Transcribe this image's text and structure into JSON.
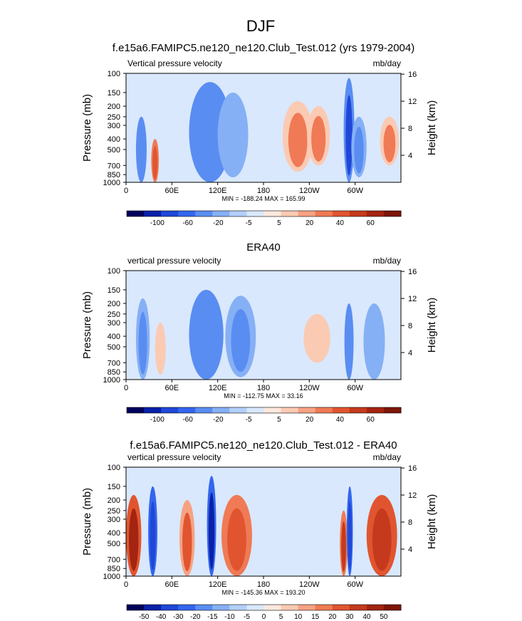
{
  "figure_title": "DJF",
  "chart_data": [
    {
      "type": "heatmap",
      "title": "f.e15a6.FAMIPC5.ne120_ne120.Club_Test.012 (yrs 1979-2004)",
      "left_label": "Vertical pressure velocity",
      "right_label": "mb/day",
      "ylabel": "Pressure (mb)",
      "ylabel_right": "Height (km)",
      "yticks": [
        "100",
        "150",
        "200",
        "250",
        "300",
        "400",
        "500",
        "700",
        "850",
        "1000"
      ],
      "ytick_values": [
        100,
        150,
        200,
        250,
        300,
        400,
        500,
        700,
        850,
        1000
      ],
      "ylim": [
        1000,
        100
      ],
      "height_ticks": [
        4,
        8,
        12,
        16
      ],
      "xticks": [
        "0",
        "60E",
        "120E",
        "180",
        "120W",
        "60W"
      ],
      "xtick_values": [
        0,
        60,
        120,
        180,
        240,
        300
      ],
      "xlim": [
        0,
        360
      ],
      "stats": "MIN = -188.24  MAX = 165.99",
      "colorbar_labels": [
        "-100",
        "-60",
        "-20",
        "-5",
        "5",
        "20",
        "40",
        "60"
      ],
      "colorbar_colors": [
        "#00005c",
        "#0a21a8",
        "#1f48d9",
        "#3366ee",
        "#5a8df2",
        "#86b0f5",
        "#b3cff9",
        "#d9e8fc",
        "#fde8dc",
        "#fbcab3",
        "#f6a282",
        "#ef7a55",
        "#e0552f",
        "#c53a1c",
        "#a32410",
        "#7d1509"
      ],
      "features": [
        {
          "lon": 20,
          "p_top": 250,
          "p_bot": 1000,
          "value": -60,
          "width": 14
        },
        {
          "lon": 38,
          "p_top": 400,
          "p_bot": 1000,
          "value": 40,
          "width": 10
        },
        {
          "lon": 110,
          "p_top": 120,
          "p_bot": 1000,
          "value": -40,
          "width": 55
        },
        {
          "lon": 140,
          "p_top": 150,
          "p_bot": 900,
          "value": -20,
          "width": 40
        },
        {
          "lon": 225,
          "p_top": 180,
          "p_bot": 800,
          "value": 30,
          "width": 40
        },
        {
          "lon": 252,
          "p_top": 200,
          "p_bot": 700,
          "value": 20,
          "width": 30
        },
        {
          "lon": 292,
          "p_top": 110,
          "p_bot": 1000,
          "value": -70,
          "width": 14
        },
        {
          "lon": 305,
          "p_top": 250,
          "p_bot": 900,
          "value": -25,
          "width": 20
        },
        {
          "lon": 345,
          "p_top": 250,
          "p_bot": 700,
          "value": 30,
          "width": 25
        }
      ]
    },
    {
      "type": "heatmap",
      "title": "ERA40",
      "left_label": "vertical pressure velocity",
      "right_label": "mb/day",
      "ylabel": "Pressure (mb)",
      "ylabel_right": "Height (km)",
      "yticks": [
        "100",
        "150",
        "200",
        "250",
        "300",
        "400",
        "500",
        "700",
        "850",
        "1000"
      ],
      "ytick_values": [
        100,
        150,
        200,
        250,
        300,
        400,
        500,
        700,
        850,
        1000
      ],
      "ylim": [
        1000,
        100
      ],
      "height_ticks": [
        4,
        8,
        12,
        16
      ],
      "xticks": [
        "0",
        "60E",
        "120E",
        "180",
        "120W",
        "60W"
      ],
      "xtick_values": [
        0,
        60,
        120,
        180,
        240,
        300
      ],
      "xlim": [
        0,
        360
      ],
      "stats": "MIN = -112.75  MAX =  33.16",
      "colorbar_labels": [
        "-100",
        "-60",
        "-20",
        "-5",
        "5",
        "20",
        "40",
        "60"
      ],
      "colorbar_colors": [
        "#00005c",
        "#0a21a8",
        "#1f48d9",
        "#3366ee",
        "#5a8df2",
        "#86b0f5",
        "#b3cff9",
        "#d9e8fc",
        "#fde8dc",
        "#fbcab3",
        "#f6a282",
        "#ef7a55",
        "#e0552f",
        "#c53a1c",
        "#a32410",
        "#7d1509"
      ],
      "features": [
        {
          "lon": 22,
          "p_top": 180,
          "p_bot": 1000,
          "value": -30,
          "width": 18
        },
        {
          "lon": 45,
          "p_top": 300,
          "p_bot": 900,
          "value": 15,
          "width": 14
        },
        {
          "lon": 105,
          "p_top": 150,
          "p_bot": 1000,
          "value": -35,
          "width": 45
        },
        {
          "lon": 150,
          "p_top": 170,
          "p_bot": 950,
          "value": -28,
          "width": 40
        },
        {
          "lon": 200,
          "p_top": 250,
          "p_bot": 700,
          "value": 3,
          "width": 20
        },
        {
          "lon": 250,
          "p_top": 250,
          "p_bot": 700,
          "value": 12,
          "width": 35
        },
        {
          "lon": 292,
          "p_top": 200,
          "p_bot": 1000,
          "value": -50,
          "width": 12
        },
        {
          "lon": 325,
          "p_top": 200,
          "p_bot": 1000,
          "value": -20,
          "width": 28
        }
      ]
    },
    {
      "type": "heatmap",
      "title": "f.e15a6.FAMIPC5.ne120_ne120.Club_Test.012 - ERA40",
      "left_label": "vertical pressure velocity",
      "right_label": "mb/day",
      "ylabel": "Pressure (mb)",
      "ylabel_right": "Height (km)",
      "yticks": [
        "100",
        "150",
        "200",
        "250",
        "300",
        "400",
        "500",
        "700",
        "850",
        "1000"
      ],
      "ytick_values": [
        100,
        150,
        200,
        250,
        300,
        400,
        500,
        700,
        850,
        1000
      ],
      "ylim": [
        1000,
        100
      ],
      "height_ticks": [
        4,
        8,
        12,
        16
      ],
      "xticks": [
        "0",
        "60E",
        "120E",
        "180",
        "120W",
        "60W"
      ],
      "xtick_values": [
        0,
        60,
        120,
        180,
        240,
        300
      ],
      "xlim": [
        0,
        360
      ],
      "stats": "MIN = -145.36  MAX = 193.20",
      "colorbar_labels": [
        "-50",
        "-40",
        "-30",
        "-20",
        "-15",
        "-10",
        "-5",
        "0",
        "5",
        "10",
        "15",
        "20",
        "30",
        "40",
        "50"
      ],
      "colorbar_colors": [
        "#00005c",
        "#0a21a8",
        "#1f48d9",
        "#3366ee",
        "#5a8df2",
        "#86b0f5",
        "#b3cff9",
        "#d9e8fc",
        "#fde8dc",
        "#fbcab3",
        "#f6a282",
        "#ef7a55",
        "#e0552f",
        "#c53a1c",
        "#a32410",
        "#7d1509"
      ],
      "features": [
        {
          "lon": 10,
          "p_top": 180,
          "p_bot": 1000,
          "value": 40,
          "width": 20
        },
        {
          "lon": 35,
          "p_top": 150,
          "p_bot": 1000,
          "value": -35,
          "width": 12
        },
        {
          "lon": 80,
          "p_top": 200,
          "p_bot": 1000,
          "value": 20,
          "width": 20
        },
        {
          "lon": 112,
          "p_top": 120,
          "p_bot": 1000,
          "value": -45,
          "width": 12
        },
        {
          "lon": 145,
          "p_top": 180,
          "p_bot": 1000,
          "value": 25,
          "width": 40
        },
        {
          "lon": 285,
          "p_top": 250,
          "p_bot": 1000,
          "value": 30,
          "width": 10
        },
        {
          "lon": 293,
          "p_top": 150,
          "p_bot": 1000,
          "value": -40,
          "width": 8
        },
        {
          "lon": 335,
          "p_top": 180,
          "p_bot": 1000,
          "value": 35,
          "width": 40
        }
      ]
    }
  ]
}
